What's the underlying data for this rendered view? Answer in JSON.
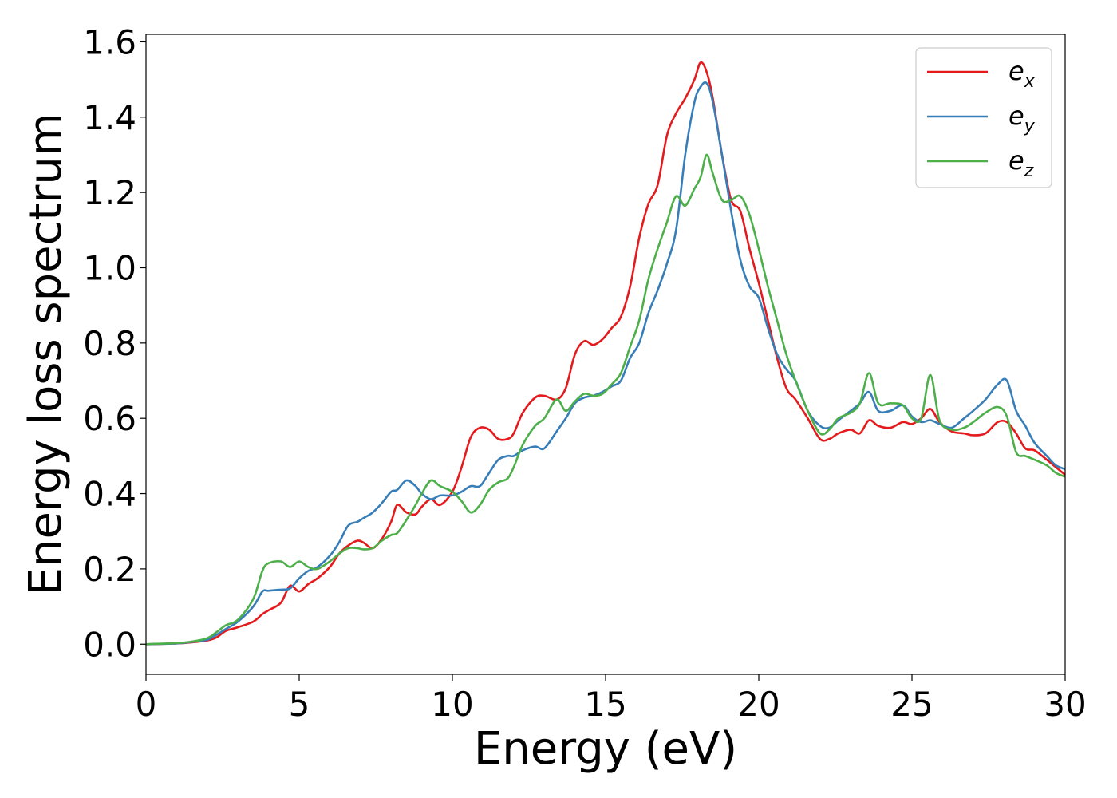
{
  "chart_data": {
    "type": "line",
    "xlabel": "Energy (eV)",
    "ylabel": "Energy loss spectrum",
    "xlim": [
      0,
      30
    ],
    "ylim": [
      -0.08,
      1.62
    ],
    "x_ticks": [
      "0",
      "5",
      "10",
      "15",
      "20",
      "25",
      "30"
    ],
    "y_ticks": [
      "0.0",
      "0.2",
      "0.4",
      "0.6",
      "0.8",
      "1.0",
      "1.2",
      "1.4",
      "1.6"
    ],
    "grid": false,
    "legend_position": "top-right",
    "series": [
      {
        "name": "e_x",
        "label_base": "e",
        "label_sub": "x",
        "color": "#e41a1c",
        "x": [
          0,
          1,
          1.5,
          2,
          2.3,
          2.6,
          3,
          3.5,
          3.8,
          4,
          4.4,
          4.7,
          5,
          5.3,
          5.6,
          6,
          6.3,
          6.6,
          6.9,
          7.1,
          7.4,
          7.7,
          8,
          8.2,
          8.5,
          8.8,
          9,
          9.3,
          9.6,
          10,
          10.3,
          10.6,
          10.9,
          11.2,
          11.5,
          11.8,
          12,
          12.3,
          12.7,
          13,
          13.4,
          13.7,
          14,
          14.3,
          14.6,
          14.9,
          15.2,
          15.5,
          15.8,
          16.1,
          16.4,
          16.7,
          17,
          17.3,
          17.6,
          17.9,
          18.1,
          18.3,
          18.5,
          18.8,
          19.1,
          19.4,
          19.7,
          20,
          20.3,
          20.6,
          20.9,
          21.2,
          21.6,
          22,
          22.3,
          22.6,
          23,
          23.3,
          23.6,
          23.9,
          24.3,
          24.7,
          25,
          25.3,
          25.6,
          25.9,
          26.3,
          26.7,
          27,
          27.4,
          27.8,
          28.1,
          28.4,
          28.7,
          29,
          29.4,
          29.7,
          30
        ],
        "y": [
          0,
          0.002,
          0.005,
          0.01,
          0.018,
          0.035,
          0.045,
          0.06,
          0.08,
          0.09,
          0.11,
          0.155,
          0.14,
          0.16,
          0.175,
          0.205,
          0.24,
          0.262,
          0.275,
          0.27,
          0.255,
          0.28,
          0.325,
          0.37,
          0.35,
          0.345,
          0.365,
          0.385,
          0.37,
          0.405,
          0.47,
          0.55,
          0.575,
          0.57,
          0.545,
          0.545,
          0.56,
          0.615,
          0.655,
          0.66,
          0.65,
          0.68,
          0.77,
          0.805,
          0.795,
          0.81,
          0.84,
          0.87,
          0.95,
          1.08,
          1.17,
          1.22,
          1.35,
          1.41,
          1.45,
          1.5,
          1.545,
          1.52,
          1.45,
          1.3,
          1.18,
          1.15,
          1.05,
          0.96,
          0.86,
          0.76,
          0.68,
          0.65,
          0.6,
          0.545,
          0.545,
          0.56,
          0.57,
          0.56,
          0.595,
          0.58,
          0.575,
          0.59,
          0.585,
          0.6,
          0.625,
          0.59,
          0.565,
          0.56,
          0.555,
          0.56,
          0.59,
          0.59,
          0.56,
          0.52,
          0.515,
          0.49,
          0.47,
          0.45
        ]
      },
      {
        "name": "e_y",
        "label_base": "e",
        "label_sub": "y",
        "color": "#377eb8",
        "x": [
          0,
          1,
          1.5,
          2,
          2.3,
          2.6,
          3,
          3.5,
          3.8,
          4,
          4.4,
          4.7,
          5,
          5.3,
          5.6,
          6,
          6.3,
          6.6,
          6.9,
          7.1,
          7.4,
          7.7,
          8,
          8.2,
          8.5,
          8.8,
          9,
          9.3,
          9.6,
          10,
          10.3,
          10.6,
          10.9,
          11.2,
          11.5,
          11.8,
          12,
          12.3,
          12.7,
          13,
          13.4,
          13.7,
          14,
          14.3,
          14.6,
          14.9,
          15.2,
          15.5,
          15.8,
          16.1,
          16.4,
          16.7,
          17,
          17.3,
          17.6,
          17.9,
          18.1,
          18.3,
          18.5,
          18.8,
          19.1,
          19.4,
          19.7,
          20,
          20.3,
          20.6,
          20.9,
          21.2,
          21.6,
          22,
          22.3,
          22.6,
          23,
          23.3,
          23.6,
          23.9,
          24.3,
          24.7,
          25,
          25.3,
          25.6,
          25.9,
          26.3,
          26.7,
          27,
          27.4,
          27.8,
          28.1,
          28.4,
          28.7,
          29,
          29.4,
          29.7,
          30
        ],
        "y": [
          0,
          0.002,
          0.006,
          0.012,
          0.025,
          0.04,
          0.06,
          0.1,
          0.14,
          0.142,
          0.145,
          0.148,
          0.175,
          0.195,
          0.205,
          0.235,
          0.27,
          0.315,
          0.325,
          0.335,
          0.35,
          0.375,
          0.405,
          0.41,
          0.435,
          0.42,
          0.4,
          0.385,
          0.395,
          0.395,
          0.405,
          0.42,
          0.42,
          0.455,
          0.49,
          0.5,
          0.5,
          0.515,
          0.525,
          0.52,
          0.565,
          0.6,
          0.64,
          0.655,
          0.66,
          0.67,
          0.685,
          0.7,
          0.76,
          0.8,
          0.88,
          0.94,
          1.01,
          1.1,
          1.3,
          1.44,
          1.48,
          1.49,
          1.44,
          1.3,
          1.15,
          1.02,
          0.95,
          0.92,
          0.84,
          0.77,
          0.73,
          0.7,
          0.62,
          0.58,
          0.575,
          0.595,
          0.62,
          0.64,
          0.67,
          0.62,
          0.62,
          0.635,
          0.605,
          0.59,
          0.595,
          0.585,
          0.575,
          0.6,
          0.62,
          0.65,
          0.69,
          0.7,
          0.62,
          0.58,
          0.535,
          0.5,
          0.475,
          0.465
        ]
      },
      {
        "name": "e_z",
        "label_base": "e",
        "label_sub": "z",
        "color": "#4daf4a",
        "x": [
          0,
          1,
          1.5,
          2,
          2.3,
          2.6,
          3,
          3.5,
          3.8,
          4,
          4.4,
          4.7,
          5,
          5.3,
          5.6,
          6,
          6.3,
          6.6,
          6.9,
          7.1,
          7.4,
          7.7,
          8,
          8.2,
          8.5,
          8.8,
          9,
          9.3,
          9.6,
          10,
          10.3,
          10.6,
          10.9,
          11.2,
          11.5,
          11.8,
          12,
          12.3,
          12.7,
          13,
          13.4,
          13.7,
          14,
          14.3,
          14.6,
          14.9,
          15.2,
          15.5,
          15.8,
          16.1,
          16.4,
          16.7,
          17,
          17.3,
          17.6,
          17.9,
          18.1,
          18.3,
          18.5,
          18.8,
          19.1,
          19.4,
          19.7,
          20,
          20.3,
          20.6,
          20.9,
          21.2,
          21.6,
          22,
          22.3,
          22.6,
          23,
          23.3,
          23.6,
          23.9,
          24.3,
          24.7,
          25,
          25.3,
          25.6,
          25.9,
          26.3,
          26.7,
          27,
          27.4,
          27.8,
          28.1,
          28.4,
          28.7,
          29,
          29.4,
          29.7,
          30
        ],
        "y": [
          0,
          0.003,
          0.007,
          0.016,
          0.032,
          0.05,
          0.065,
          0.12,
          0.195,
          0.215,
          0.22,
          0.205,
          0.22,
          0.205,
          0.2,
          0.22,
          0.24,
          0.255,
          0.255,
          0.252,
          0.255,
          0.275,
          0.29,
          0.295,
          0.33,
          0.37,
          0.4,
          0.435,
          0.42,
          0.405,
          0.38,
          0.35,
          0.37,
          0.41,
          0.43,
          0.44,
          0.47,
          0.53,
          0.58,
          0.6,
          0.65,
          0.62,
          0.645,
          0.665,
          0.66,
          0.665,
          0.69,
          0.72,
          0.79,
          0.86,
          0.97,
          1.05,
          1.12,
          1.19,
          1.165,
          1.21,
          1.24,
          1.3,
          1.25,
          1.18,
          1.18,
          1.19,
          1.14,
          1.05,
          0.95,
          0.86,
          0.77,
          0.7,
          0.62,
          0.56,
          0.57,
          0.6,
          0.615,
          0.64,
          0.72,
          0.64,
          0.64,
          0.635,
          0.6,
          0.6,
          0.715,
          0.595,
          0.57,
          0.575,
          0.59,
          0.615,
          0.63,
          0.605,
          0.51,
          0.5,
          0.49,
          0.475,
          0.455,
          0.445
        ]
      }
    ]
  }
}
